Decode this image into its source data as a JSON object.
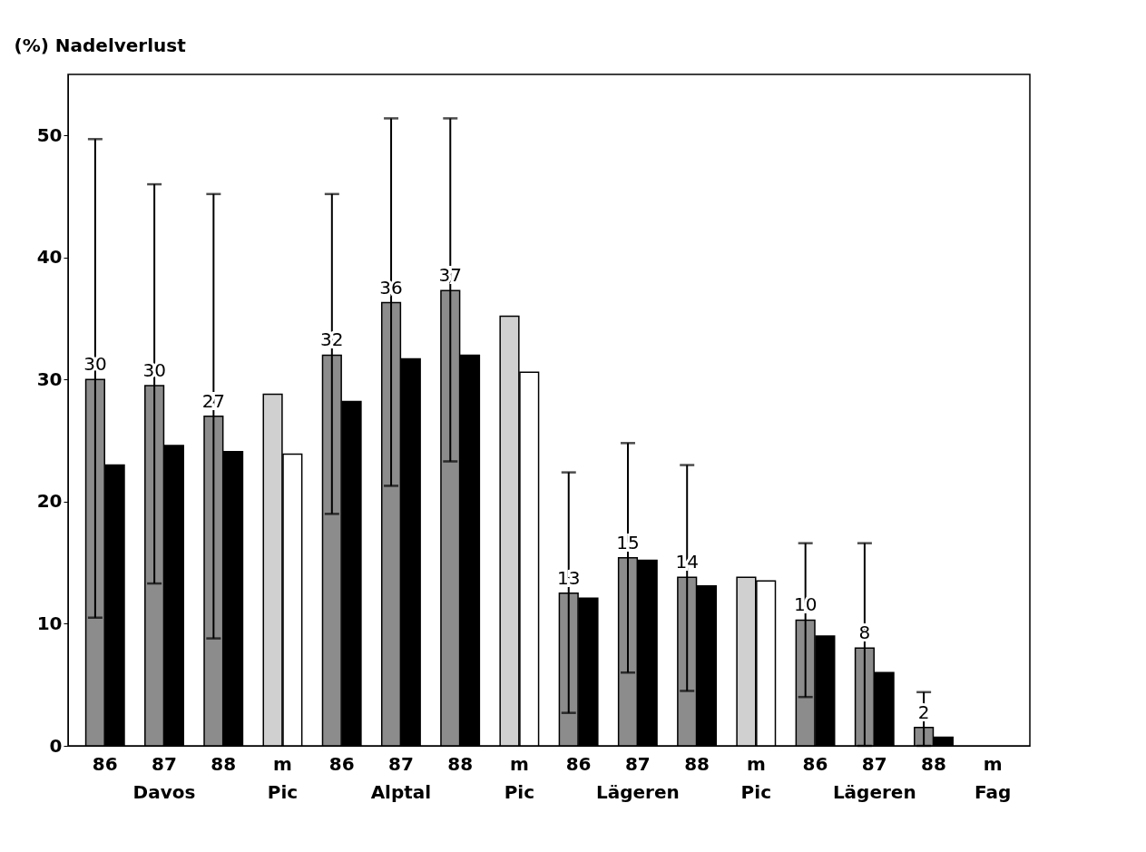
{
  "chart_data": {
    "type": "bar",
    "ylabel": "(%) Nadelverlust",
    "categories": [
      "86",
      "87",
      "88",
      "m",
      "86",
      "87",
      "88",
      "m",
      "86",
      "87",
      "88",
      "m",
      "86",
      "87",
      "88",
      "m"
    ],
    "series": [
      {
        "colors": [
          "#8c8c8c",
          "#8c8c8c",
          "#8c8c8c",
          "#d0d0d0",
          "#8c8c8c",
          "#8c8c8c",
          "#8c8c8c",
          "#d0d0d0",
          "#8c8c8c",
          "#8c8c8c",
          "#8c8c8c",
          "#d0d0d0",
          "#8c8c8c",
          "#8c8c8c",
          "#8c8c8c",
          "#d0d0d0"
        ],
        "values": [
          30,
          29.5,
          27,
          28.8,
          32,
          36.3,
          37.3,
          35.2,
          12.5,
          15.4,
          13.8,
          13.8,
          10.3,
          8,
          1.5,
          null
        ],
        "value_labels": [
          "30",
          "30",
          "27",
          null,
          "32",
          "36",
          "37",
          null,
          "13",
          "15",
          "14",
          null,
          "10",
          "8",
          "2",
          null
        ],
        "errors": [
          [
            10.5,
            49.7
          ],
          [
            13.3,
            46
          ],
          [
            8.8,
            45.2
          ],
          null,
          [
            19,
            45.2
          ],
          [
            21.3,
            51.4
          ],
          [
            23.3,
            51.4
          ],
          null,
          [
            2.7,
            22.4
          ],
          [
            6,
            24.8
          ],
          [
            4.5,
            23
          ],
          null,
          [
            4,
            16.6
          ],
          [
            0,
            16.6
          ],
          [
            0,
            4.4
          ],
          null
        ]
      },
      {
        "colors": [
          "#000000",
          "#000000",
          "#000000",
          "#ffffff",
          "#000000",
          "#000000",
          "#000000",
          "#ffffff",
          "#000000",
          "#000000",
          "#000000",
          "#ffffff",
          "#000000",
          "#000000",
          "#000000",
          "#ffffff"
        ],
        "values": [
          23,
          24.6,
          24.1,
          23.9,
          28.2,
          31.7,
          32,
          30.6,
          12.1,
          15.2,
          13.1,
          13.5,
          9,
          6,
          0.7,
          null
        ]
      }
    ],
    "annotations": [
      "Davos",
      "Pic",
      "Alptal",
      "Pic",
      "Lägeren",
      "Pic",
      "Lägeren",
      "Fag"
    ],
    "ylim": [
      0,
      55
    ],
    "yticks": [
      0,
      10,
      20,
      30,
      40,
      50
    ],
    "grid": false
  }
}
